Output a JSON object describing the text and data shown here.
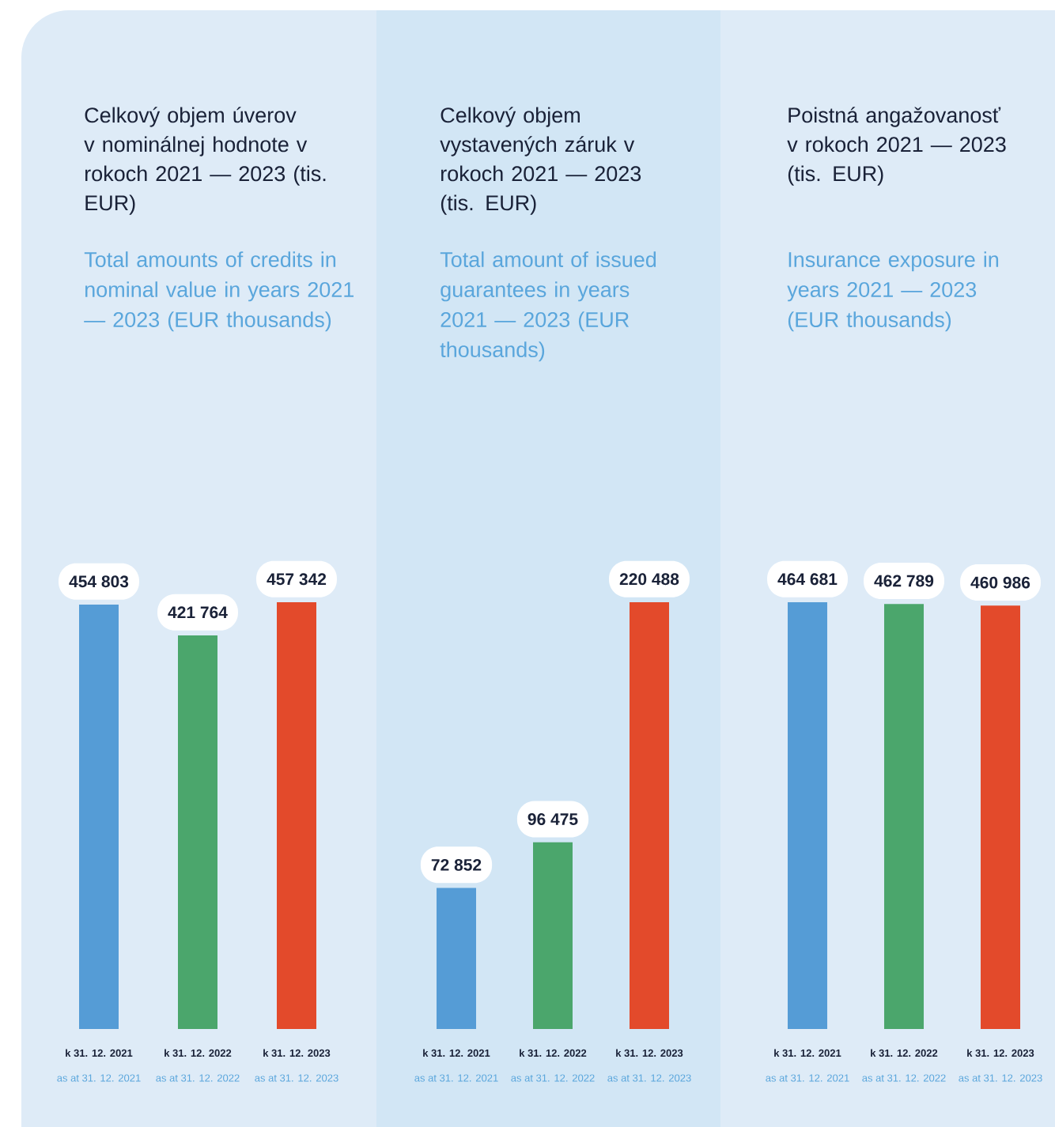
{
  "chart_data": [
    {
      "type": "bar",
      "title": "Celkový objem úverov v nominálnej hodnote v rokoch 2021 — 2023 (tis. EUR)",
      "subtitle": "Total amounts of credits in nominal value in years 2021 — 2023 (EUR thousands)",
      "categories": [
        "k 31. 12. 2021",
        "k 31. 12. 2022",
        "k 31. 12. 2023"
      ],
      "annotations": [
        "as at 31. 12. 2021",
        "as at 31. 12. 2022",
        "as at 31. 12. 2023"
      ],
      "values": [
        454803,
        421764,
        457342
      ],
      "value_labels": [
        "454 803",
        "421 764",
        "457 342"
      ],
      "colors": [
        "#559cd6",
        "#4ba66c",
        "#e34a2b"
      ]
    },
    {
      "type": "bar",
      "title": "Celkový objem vystavených záruk v rokoch 2021 — 2023 (tis. EUR)",
      "subtitle": "Total amount of issued guarantees in years 2021 — 2023 (EUR thousands)",
      "categories": [
        "k 31. 12. 2021",
        "k 31. 12. 2022",
        "k 31. 12. 2023"
      ],
      "annotations": [
        "as at 31. 12. 2021",
        "as at 31. 12. 2022",
        "as at 31. 12. 2023"
      ],
      "values": [
        72852,
        96475,
        220488
      ],
      "value_labels": [
        "72 852",
        "96 475",
        "220 488"
      ],
      "colors": [
        "#559cd6",
        "#4ba66c",
        "#e34a2b"
      ]
    },
    {
      "type": "bar",
      "title": "Poistná angažovanosť v rokoch 2021 — 2023 (tis. EUR)",
      "subtitle": "Insurance exposure in years 2021 — 2023 (EUR thousands)",
      "categories": [
        "k 31. 12. 2021",
        "k 31. 12. 2022",
        "k 31. 12. 2023"
      ],
      "annotations": [
        "as at 31. 12. 2021",
        "as at 31. 12. 2022",
        "as at 31. 12. 2023"
      ],
      "values": [
        464681,
        462789,
        460986
      ],
      "value_labels": [
        "464 681",
        "462 789",
        "460 986"
      ],
      "colors": [
        "#559cd6",
        "#4ba66c",
        "#e34a2b"
      ]
    }
  ]
}
